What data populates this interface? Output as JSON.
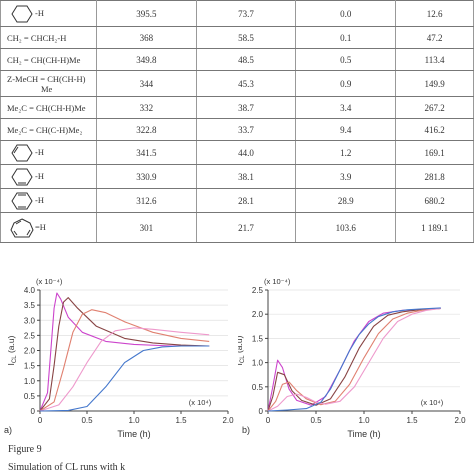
{
  "table": {
    "rows": [
      {
        "molecule": "-H",
        "ring": "cyclohexyl",
        "bde": "395.5",
        "ea": "73.7",
        "k1": "0.0",
        "k2": "12.6"
      },
      {
        "molecule": "CH₂ = CHCH₂-H",
        "bde": "368",
        "ea": "58.5",
        "k1": "0.1",
        "k2": "47.2"
      },
      {
        "molecule": "CH₂ = CH(CH-H)Me",
        "bde": "349.8",
        "ea": "48.5",
        "k1": "0.5",
        "k2": "113.4"
      },
      {
        "molecule": "Z-MeCH = CH(CH-H)",
        "molecule2": "Me",
        "bde": "344",
        "ea": "45.3",
        "k1": "0.9",
        "k2": "149.9"
      },
      {
        "molecule": "Me₂C = CH(CH-H)Me",
        "bde": "332",
        "ea": "38.7",
        "k1": "3.4",
        "k2": "267.2"
      },
      {
        "molecule": "Me₂C = CH(C-H)Me₂",
        "bde": "322.8",
        "ea": "33.7",
        "k1": "9.4",
        "k2": "416.2"
      },
      {
        "molecule": "-H",
        "ring": "cyclohexenyl",
        "bde": "341.5",
        "ea": "44.0",
        "k1": "1.2",
        "k2": "169.1"
      },
      {
        "molecule": "-H",
        "ring": "cyclohexenyl-2",
        "bde": "330.9",
        "ea": "38.1",
        "k1": "3.9",
        "k2": "281.8"
      },
      {
        "molecule": "-H",
        "ring": "cyclohexadienyl",
        "bde": "312.6",
        "ea": "28.1",
        "k1": "28.9",
        "k2": "680.2"
      },
      {
        "molecule": "=H",
        "ring": "cycloheptatrienyl",
        "bde": "301",
        "ea": "21.7",
        "k1": "103.6",
        "k2": "1 189.1"
      }
    ]
  },
  "chart_data": [
    {
      "type": "line",
      "panel_label": "a)",
      "exponent_y": "(x 10⁻⁴)",
      "exponent_x": "(x 10⁴)",
      "xlabel": "Time (h)",
      "ylabel": "I",
      "ylabel_sub": "CL",
      "ylabel_unit": "(a.u)",
      "xlim": [
        0,
        2.0
      ],
      "ylim": [
        0,
        4.0
      ],
      "xticks": [
        "0",
        "0.5",
        "1.0",
        "1.5",
        "2.0"
      ],
      "yticks": [
        "0",
        "0.5",
        "1.0",
        "1.5",
        "2.0",
        "2.5",
        "3.0",
        "3.5",
        "4.0"
      ],
      "series": [
        {
          "color": "#cc44cc",
          "x": [
            0,
            0.08,
            0.12,
            0.15,
            0.18,
            0.22,
            0.3,
            0.45,
            0.7,
            1.0,
            1.4,
            1.8
          ],
          "y": [
            0,
            0.6,
            2.2,
            3.4,
            3.9,
            3.7,
            3.1,
            2.6,
            2.3,
            2.2,
            2.15,
            2.15
          ]
        },
        {
          "color": "#884444",
          "x": [
            0,
            0.1,
            0.15,
            0.2,
            0.25,
            0.3,
            0.4,
            0.6,
            0.9,
            1.2,
            1.5,
            1.8
          ],
          "y": [
            0,
            0.4,
            1.5,
            2.8,
            3.6,
            3.75,
            3.4,
            2.8,
            2.4,
            2.25,
            2.18,
            2.15
          ]
        },
        {
          "color": "#e08070",
          "x": [
            0,
            0.15,
            0.25,
            0.35,
            0.45,
            0.55,
            0.7,
            0.9,
            1.2,
            1.5,
            1.8
          ],
          "y": [
            0,
            0.3,
            1.4,
            2.6,
            3.2,
            3.35,
            3.25,
            2.95,
            2.6,
            2.4,
            2.3
          ]
        },
        {
          "color": "#ee99cc",
          "x": [
            0,
            0.2,
            0.35,
            0.5,
            0.65,
            0.8,
            1.0,
            1.2,
            1.5,
            1.8
          ],
          "y": [
            0,
            0.2,
            0.8,
            1.6,
            2.3,
            2.65,
            2.75,
            2.7,
            2.6,
            2.52
          ]
        },
        {
          "color": "#4477cc",
          "x": [
            0,
            0.3,
            0.5,
            0.7,
            0.9,
            1.1,
            1.3,
            1.5,
            1.8
          ],
          "y": [
            0,
            0.02,
            0.15,
            0.8,
            1.6,
            2.0,
            2.12,
            2.15,
            2.15
          ]
        }
      ]
    },
    {
      "type": "line",
      "panel_label": "b)",
      "exponent_y": "(x 10⁻⁴)",
      "exponent_x": "(x 10⁴)",
      "xlabel": "Time (h)",
      "ylabel": "I",
      "ylabel_sub": "CL",
      "ylabel_unit": "(a.u)",
      "xlim": [
        0,
        2.0
      ],
      "ylim": [
        0,
        2.5
      ],
      "xticks": [
        "0",
        "0.5",
        "1.0",
        "1.5",
        "2.0"
      ],
      "yticks": [
        "0",
        "0.5",
        "1.0",
        "1.5",
        "2.0",
        "2.5"
      ],
      "series": [
        {
          "color": "#cc44cc",
          "x": [
            0,
            0.05,
            0.1,
            0.15,
            0.22,
            0.3,
            0.45,
            0.6,
            0.75,
            0.9,
            1.05,
            1.2,
            1.4,
            1.6,
            1.8
          ],
          "y": [
            0,
            0.5,
            1.05,
            0.9,
            0.45,
            0.22,
            0.12,
            0.3,
            0.85,
            1.45,
            1.85,
            2.02,
            2.08,
            2.1,
            2.12
          ]
        },
        {
          "color": "#884444",
          "x": [
            0,
            0.05,
            0.1,
            0.17,
            0.25,
            0.35,
            0.5,
            0.65,
            0.8,
            0.95,
            1.1,
            1.25,
            1.4,
            1.6,
            1.8
          ],
          "y": [
            0,
            0.3,
            0.8,
            0.75,
            0.42,
            0.22,
            0.12,
            0.25,
            0.7,
            1.3,
            1.75,
            1.98,
            2.05,
            2.1,
            2.12
          ]
        },
        {
          "color": "#e08070",
          "x": [
            0,
            0.08,
            0.15,
            0.22,
            0.3,
            0.4,
            0.55,
            0.7,
            0.85,
            1.0,
            1.15,
            1.3,
            1.45,
            1.6,
            1.8
          ],
          "y": [
            0,
            0.2,
            0.55,
            0.6,
            0.42,
            0.25,
            0.13,
            0.2,
            0.55,
            1.1,
            1.6,
            1.9,
            2.02,
            2.08,
            2.12
          ]
        },
        {
          "color": "#ee99cc",
          "x": [
            0,
            0.1,
            0.2,
            0.3,
            0.4,
            0.5,
            0.6,
            0.75,
            0.9,
            1.05,
            1.2,
            1.35,
            1.5,
            1.65,
            1.8
          ],
          "y": [
            0,
            0.1,
            0.3,
            0.35,
            0.28,
            0.18,
            0.14,
            0.2,
            0.5,
            1.0,
            1.5,
            1.85,
            2.0,
            2.08,
            2.12
          ]
        },
        {
          "color": "#4477cc",
          "x": [
            0,
            0.2,
            0.4,
            0.55,
            0.65,
            0.75,
            0.85,
            0.95,
            1.05,
            1.15,
            1.3,
            1.45,
            1.6,
            1.8
          ],
          "y": [
            0,
            0.02,
            0.05,
            0.18,
            0.45,
            0.85,
            1.25,
            1.58,
            1.8,
            1.95,
            2.05,
            2.09,
            2.11,
            2.13
          ]
        }
      ]
    }
  ],
  "caption": {
    "figure": "Figure 9",
    "text": "Simulation of CL runs with k"
  }
}
